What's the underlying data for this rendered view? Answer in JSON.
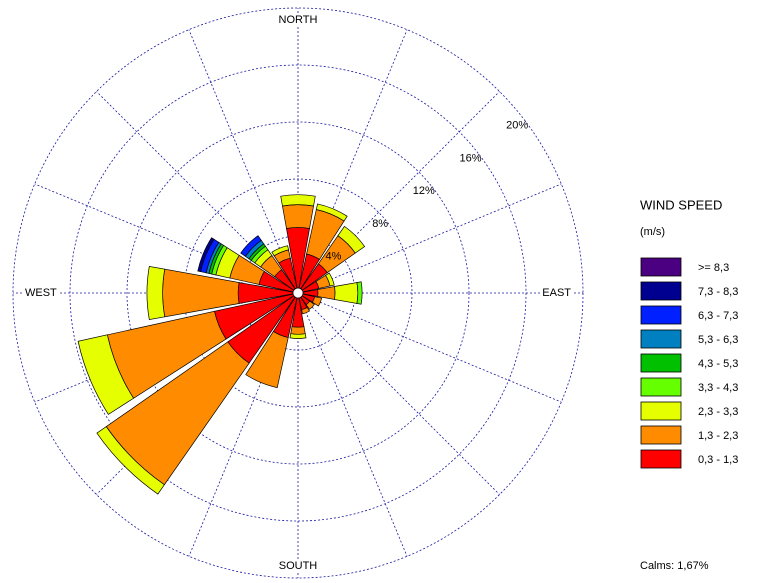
{
  "chart_data": {
    "type": "windrose",
    "title": "WIND SPEED",
    "subtitle": "(m/s)",
    "annotation": "Calms: 1,67%",
    "categories": [
      "NORTH",
      null,
      null,
      null,
      "EAST",
      null,
      null,
      null,
      "SOUTH",
      null,
      null,
      null,
      "WEST",
      null,
      null,
      null
    ],
    "rlim": [
      0,
      20
    ],
    "rticks": [
      {
        "value": 4,
        "label": "4%"
      },
      {
        "value": 8,
        "label": "8%"
      },
      {
        "value": 12,
        "label": "12%"
      },
      {
        "value": 16,
        "label": "16%"
      },
      {
        "value": 20,
        "label": "20%"
      }
    ],
    "grid": true,
    "series": [
      {
        "name": "0,3 - 1,3",
        "color": "#ff0000",
        "values": [
          4.6,
          2.8,
          2.5,
          1.5,
          1.4,
          1.2,
          1.0,
          1.2,
          2.4,
          3.2,
          6.0,
          6.0,
          4.2,
          2.8,
          2.0,
          2.5
        ]
      },
      {
        "name": "1,3 - 2,3",
        "color": "#ff8c00",
        "values": [
          1.6,
          3.2,
          2.4,
          0.8,
          1.2,
          0.5,
          0.4,
          0.3,
          0.5,
          3.6,
          10.4,
          7.7,
          5.3,
          2.1,
          1.2,
          0.6
        ]
      },
      {
        "name": "2,3 - 3,3",
        "color": "#e6ff00",
        "values": [
          0.7,
          0.4,
          0.8,
          0.3,
          1.6,
          0,
          0,
          0,
          0.3,
          0,
          0.8,
          2.1,
          1.1,
          1.0,
          0.5,
          0.3
        ]
      },
      {
        "name": "3,3 - 4,3",
        "color": "#66ff00",
        "values": [
          0,
          0,
          0,
          0,
          0.3,
          0,
          0,
          0,
          0,
          0,
          0,
          0,
          0,
          0.3,
          0.3,
          0
        ]
      },
      {
        "name": "4,3 - 5,3",
        "color": "#00c000",
        "values": [
          0,
          0,
          0,
          0,
          0,
          0,
          0,
          0,
          0,
          0,
          0,
          0,
          0,
          0.2,
          0.2,
          0
        ]
      },
      {
        "name": "5,3 - 6,3",
        "color": "#0080c0",
        "values": [
          0,
          0,
          0,
          0,
          0,
          0,
          0,
          0,
          0,
          0,
          0,
          0,
          0,
          0.2,
          0.3,
          0
        ]
      },
      {
        "name": "6,3 - 7,3",
        "color": "#0020ff",
        "values": [
          0,
          0,
          0,
          0,
          0,
          0,
          0,
          0,
          0,
          0,
          0,
          0,
          0,
          0.4,
          0.4,
          0
        ]
      },
      {
        "name": "7,3 - 8,3",
        "color": "#000090",
        "values": [
          0,
          0,
          0,
          0,
          0,
          0,
          0,
          0,
          0,
          0,
          0,
          0,
          0,
          0.2,
          0,
          0
        ]
      },
      {
        "name": ">= 8,3",
        "color": "#4b0082",
        "values": [
          0,
          0,
          0,
          0,
          0,
          0,
          0,
          0,
          0,
          0,
          0,
          0,
          0,
          0,
          0,
          0
        ]
      }
    ]
  }
}
